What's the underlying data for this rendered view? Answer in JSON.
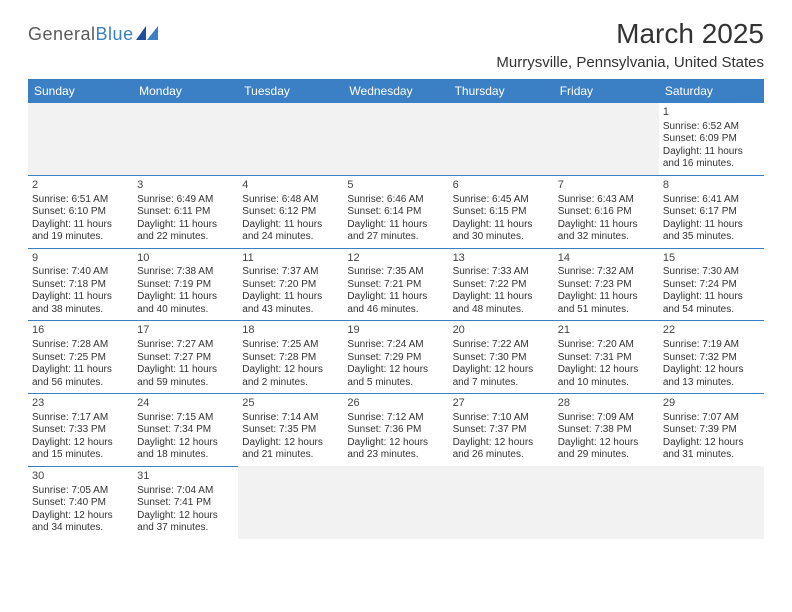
{
  "brand": {
    "name_a": "General",
    "name_b": "Blue"
  },
  "header": {
    "month_title": "March 2025",
    "location": "Murrysville, Pennsylvania, United States"
  },
  "calendar": {
    "type": "calendar-table",
    "colors": {
      "header_bg": "#3b7fc4",
      "header_text": "#ffffff",
      "row_divider": "#3b7fc4",
      "empty_cell_bg": "#f2f2f2",
      "text": "#333333",
      "background": "#ffffff"
    },
    "weekdays": [
      "Sunday",
      "Monday",
      "Tuesday",
      "Wednesday",
      "Thursday",
      "Friday",
      "Saturday"
    ],
    "leading_blanks": 6,
    "days": [
      {
        "n": "1",
        "sunrise": "Sunrise: 6:52 AM",
        "sunset": "Sunset: 6:09 PM",
        "daylight": "Daylight: 11 hours and 16 minutes."
      },
      {
        "n": "2",
        "sunrise": "Sunrise: 6:51 AM",
        "sunset": "Sunset: 6:10 PM",
        "daylight": "Daylight: 11 hours and 19 minutes."
      },
      {
        "n": "3",
        "sunrise": "Sunrise: 6:49 AM",
        "sunset": "Sunset: 6:11 PM",
        "daylight": "Daylight: 11 hours and 22 minutes."
      },
      {
        "n": "4",
        "sunrise": "Sunrise: 6:48 AM",
        "sunset": "Sunset: 6:12 PM",
        "daylight": "Daylight: 11 hours and 24 minutes."
      },
      {
        "n": "5",
        "sunrise": "Sunrise: 6:46 AM",
        "sunset": "Sunset: 6:14 PM",
        "daylight": "Daylight: 11 hours and 27 minutes."
      },
      {
        "n": "6",
        "sunrise": "Sunrise: 6:45 AM",
        "sunset": "Sunset: 6:15 PM",
        "daylight": "Daylight: 11 hours and 30 minutes."
      },
      {
        "n": "7",
        "sunrise": "Sunrise: 6:43 AM",
        "sunset": "Sunset: 6:16 PM",
        "daylight": "Daylight: 11 hours and 32 minutes."
      },
      {
        "n": "8",
        "sunrise": "Sunrise: 6:41 AM",
        "sunset": "Sunset: 6:17 PM",
        "daylight": "Daylight: 11 hours and 35 minutes."
      },
      {
        "n": "9",
        "sunrise": "Sunrise: 7:40 AM",
        "sunset": "Sunset: 7:18 PM",
        "daylight": "Daylight: 11 hours and 38 minutes."
      },
      {
        "n": "10",
        "sunrise": "Sunrise: 7:38 AM",
        "sunset": "Sunset: 7:19 PM",
        "daylight": "Daylight: 11 hours and 40 minutes."
      },
      {
        "n": "11",
        "sunrise": "Sunrise: 7:37 AM",
        "sunset": "Sunset: 7:20 PM",
        "daylight": "Daylight: 11 hours and 43 minutes."
      },
      {
        "n": "12",
        "sunrise": "Sunrise: 7:35 AM",
        "sunset": "Sunset: 7:21 PM",
        "daylight": "Daylight: 11 hours and 46 minutes."
      },
      {
        "n": "13",
        "sunrise": "Sunrise: 7:33 AM",
        "sunset": "Sunset: 7:22 PM",
        "daylight": "Daylight: 11 hours and 48 minutes."
      },
      {
        "n": "14",
        "sunrise": "Sunrise: 7:32 AM",
        "sunset": "Sunset: 7:23 PM",
        "daylight": "Daylight: 11 hours and 51 minutes."
      },
      {
        "n": "15",
        "sunrise": "Sunrise: 7:30 AM",
        "sunset": "Sunset: 7:24 PM",
        "daylight": "Daylight: 11 hours and 54 minutes."
      },
      {
        "n": "16",
        "sunrise": "Sunrise: 7:28 AM",
        "sunset": "Sunset: 7:25 PM",
        "daylight": "Daylight: 11 hours and 56 minutes."
      },
      {
        "n": "17",
        "sunrise": "Sunrise: 7:27 AM",
        "sunset": "Sunset: 7:27 PM",
        "daylight": "Daylight: 11 hours and 59 minutes."
      },
      {
        "n": "18",
        "sunrise": "Sunrise: 7:25 AM",
        "sunset": "Sunset: 7:28 PM",
        "daylight": "Daylight: 12 hours and 2 minutes."
      },
      {
        "n": "19",
        "sunrise": "Sunrise: 7:24 AM",
        "sunset": "Sunset: 7:29 PM",
        "daylight": "Daylight: 12 hours and 5 minutes."
      },
      {
        "n": "20",
        "sunrise": "Sunrise: 7:22 AM",
        "sunset": "Sunset: 7:30 PM",
        "daylight": "Daylight: 12 hours and 7 minutes."
      },
      {
        "n": "21",
        "sunrise": "Sunrise: 7:20 AM",
        "sunset": "Sunset: 7:31 PM",
        "daylight": "Daylight: 12 hours and 10 minutes."
      },
      {
        "n": "22",
        "sunrise": "Sunrise: 7:19 AM",
        "sunset": "Sunset: 7:32 PM",
        "daylight": "Daylight: 12 hours and 13 minutes."
      },
      {
        "n": "23",
        "sunrise": "Sunrise: 7:17 AM",
        "sunset": "Sunset: 7:33 PM",
        "daylight": "Daylight: 12 hours and 15 minutes."
      },
      {
        "n": "24",
        "sunrise": "Sunrise: 7:15 AM",
        "sunset": "Sunset: 7:34 PM",
        "daylight": "Daylight: 12 hours and 18 minutes."
      },
      {
        "n": "25",
        "sunrise": "Sunrise: 7:14 AM",
        "sunset": "Sunset: 7:35 PM",
        "daylight": "Daylight: 12 hours and 21 minutes."
      },
      {
        "n": "26",
        "sunrise": "Sunrise: 7:12 AM",
        "sunset": "Sunset: 7:36 PM",
        "daylight": "Daylight: 12 hours and 23 minutes."
      },
      {
        "n": "27",
        "sunrise": "Sunrise: 7:10 AM",
        "sunset": "Sunset: 7:37 PM",
        "daylight": "Daylight: 12 hours and 26 minutes."
      },
      {
        "n": "28",
        "sunrise": "Sunrise: 7:09 AM",
        "sunset": "Sunset: 7:38 PM",
        "daylight": "Daylight: 12 hours and 29 minutes."
      },
      {
        "n": "29",
        "sunrise": "Sunrise: 7:07 AM",
        "sunset": "Sunset: 7:39 PM",
        "daylight": "Daylight: 12 hours and 31 minutes."
      },
      {
        "n": "30",
        "sunrise": "Sunrise: 7:05 AM",
        "sunset": "Sunset: 7:40 PM",
        "daylight": "Daylight: 12 hours and 34 minutes."
      },
      {
        "n": "31",
        "sunrise": "Sunrise: 7:04 AM",
        "sunset": "Sunset: 7:41 PM",
        "daylight": "Daylight: 12 hours and 37 minutes."
      }
    ]
  }
}
